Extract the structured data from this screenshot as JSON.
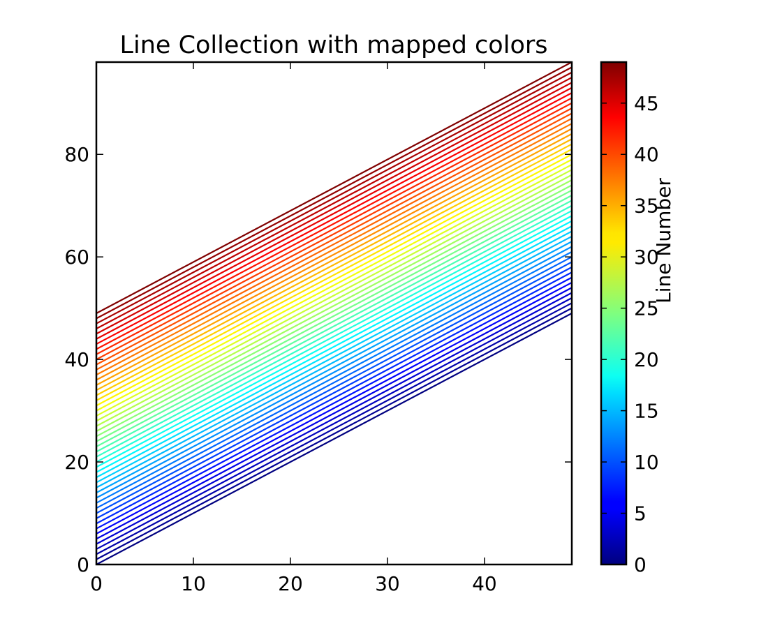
{
  "chart_data": {
    "type": "line",
    "title": "Line Collection with mapped colors",
    "xlabel": "",
    "ylabel": "",
    "xlim": [
      0,
      49
    ],
    "ylim": [
      0,
      98
    ],
    "xticks": [
      0,
      10,
      20,
      30,
      40
    ],
    "yticks": [
      0,
      20,
      40,
      60,
      80
    ],
    "grid": false,
    "colormap": "jet",
    "line_count": 50,
    "lines": {
      "x": [
        0,
        49
      ],
      "formula": "y = x + line_number",
      "line_numbers": [
        0,
        1,
        2,
        3,
        4,
        5,
        6,
        7,
        8,
        9,
        10,
        11,
        12,
        13,
        14,
        15,
        16,
        17,
        18,
        19,
        20,
        21,
        22,
        23,
        24,
        25,
        26,
        27,
        28,
        29,
        30,
        31,
        32,
        33,
        34,
        35,
        36,
        37,
        38,
        39,
        40,
        41,
        42,
        43,
        44,
        45,
        46,
        47,
        48,
        49
      ]
    },
    "colorbar": {
      "label": "Line Number",
      "range": [
        0,
        49
      ],
      "ticks": [
        0,
        5,
        10,
        15,
        20,
        25,
        30,
        35,
        40,
        45
      ]
    }
  }
}
